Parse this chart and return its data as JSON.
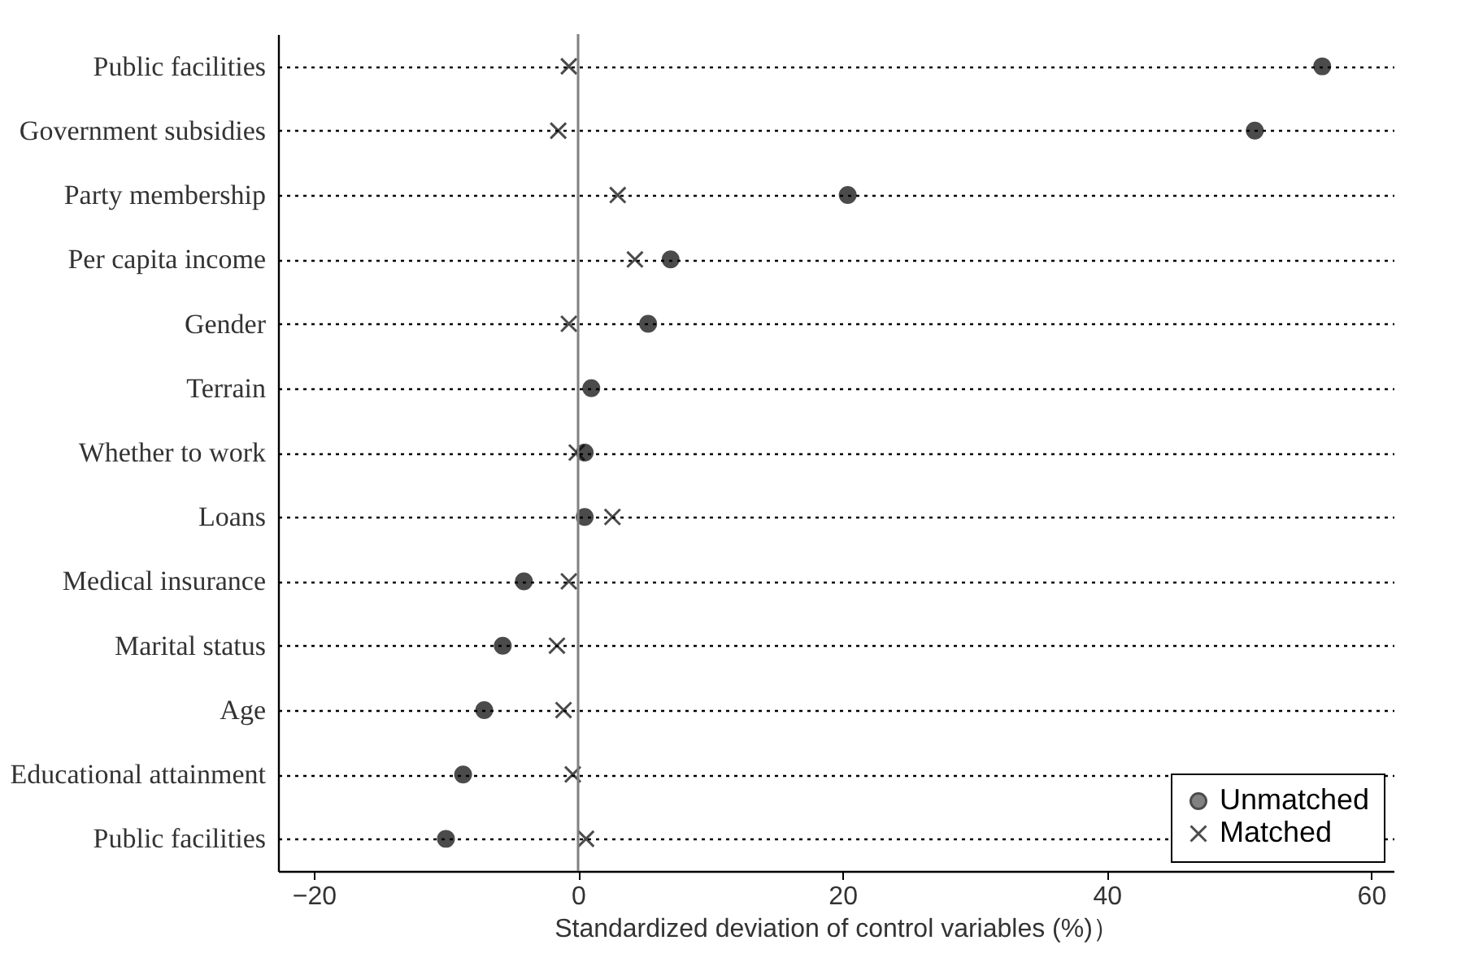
{
  "chart_data": {
    "type": "scatter",
    "xlabel": "Standardized deviation of control variables (%)）",
    "categories": [
      "Public facilities",
      "Government subsidies",
      "Party membership",
      "Per capita income",
      "Gender",
      "Terrain",
      "Whether to work",
      "Loans",
      "Medical insurance",
      "Marital status",
      "Age",
      "Educational attainment",
      "Public facilities"
    ],
    "series": [
      {
        "name": "Unmatched",
        "color": "#000000",
        "marker": "circle",
        "values": [
          56.3,
          51.2,
          20.4,
          7.0,
          5.3,
          1.0,
          0.5,
          0.5,
          -4.1,
          -5.7,
          -7.1,
          -8.7,
          -10.0
        ]
      },
      {
        "name": "Matched",
        "color": "#000000",
        "marker": "cross",
        "values": [
          -0.7,
          -1.5,
          3.0,
          4.3,
          -0.7,
          null,
          -0.1,
          2.6,
          -0.7,
          -1.6,
          -1.1,
          -0.4,
          0.6
        ]
      }
    ],
    "orientation": "horizontal",
    "xlim": [
      -22.7,
      61.7
    ],
    "xticks": [
      -20,
      0,
      20,
      40,
      60
    ],
    "ref_lines": [
      {
        "axis": "x",
        "value": 0,
        "color": "#808080"
      }
    ],
    "grid": "y",
    "legend": "bottom right"
  }
}
